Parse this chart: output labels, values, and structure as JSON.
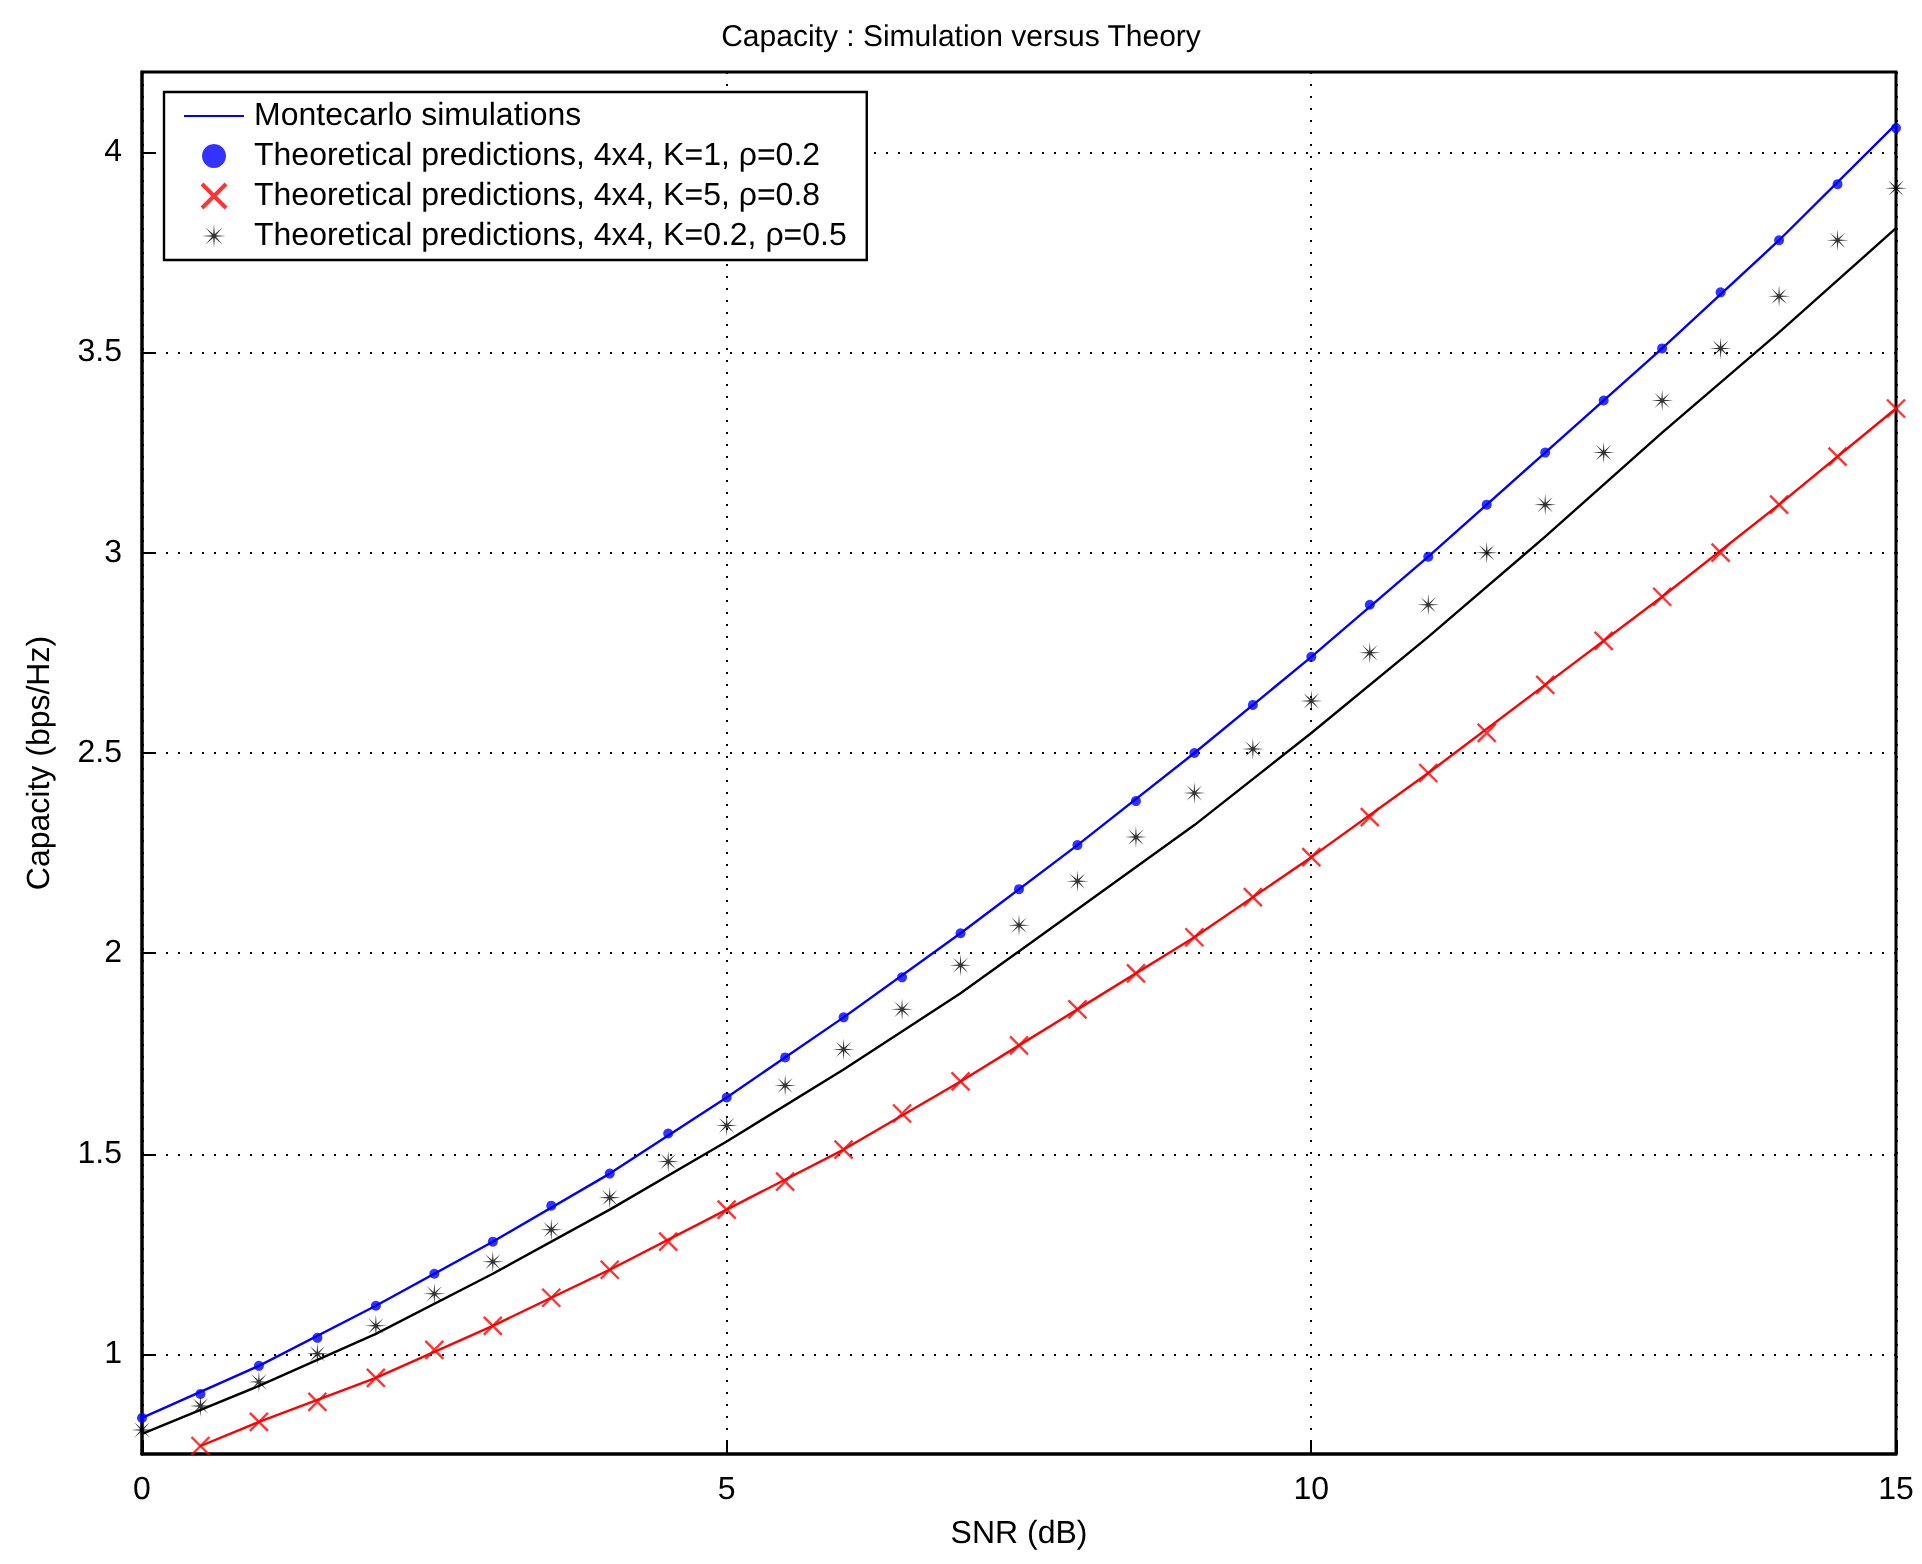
{
  "chart_data": {
    "type": "line",
    "title": "Capacity : Simulation versus Theory",
    "xlabel": "SNR (dB)",
    "ylabel": "Capacity (bps/Hz)",
    "xlim": [
      0,
      15
    ],
    "xticks": [
      0,
      5,
      10,
      15
    ],
    "ylim": [
      0.75,
      4.2
    ],
    "yticks": [
      1,
      1.5,
      2,
      2.5,
      3,
      3.5,
      4
    ],
    "grid": true,
    "legend": "top left",
    "line_style": "solid",
    "series": [
      {
        "name": "Montecarlo simulations",
        "type": "line",
        "marker": "none",
        "color": "#0000ff",
        "x": [
          0,
          1,
          2,
          3,
          4,
          5,
          6,
          7,
          8,
          9,
          10,
          11,
          12,
          13,
          14,
          15
        ],
        "values": [
          0.84,
          0.97,
          1.12,
          1.28,
          1.45,
          1.64,
          1.84,
          2.05,
          2.27,
          2.5,
          2.74,
          2.99,
          3.25,
          3.51,
          3.78,
          4.07
        ]
      },
      {
        "type": "line",
        "marker": "none",
        "color": "#ff0000",
        "x": [
          0.5,
          1,
          2,
          3,
          4,
          5,
          6,
          7,
          8,
          9,
          10,
          11,
          12,
          13,
          14,
          15
        ],
        "values": [
          0.77,
          0.83,
          0.94,
          1.07,
          1.21,
          1.36,
          1.51,
          1.68,
          1.86,
          2.04,
          2.24,
          2.45,
          2.67,
          2.89,
          3.12,
          3.36
        ]
      },
      {
        "type": "line",
        "marker": "none",
        "color": "#000000",
        "x": [
          0,
          1,
          2,
          3,
          4,
          5,
          6,
          7,
          8,
          9,
          10,
          11,
          12,
          13,
          14,
          15
        ],
        "values": [
          0.8,
          0.92,
          1.05,
          1.2,
          1.36,
          1.53,
          1.71,
          1.9,
          2.11,
          2.32,
          2.55,
          2.79,
          3.04,
          3.3,
          3.55,
          3.81
        ]
      },
      {
        "name": "Theoretical predictions, 4x4, K=1, ρ=0.2",
        "type": "scatter",
        "marker": "circle",
        "color": "#0000ff",
        "x": [
          0,
          0.5,
          1,
          1.5,
          2,
          2.5,
          3,
          3.5,
          4,
          4.5,
          5,
          5.5,
          6,
          6.5,
          7,
          7.5,
          8,
          8.5,
          9,
          9.5,
          10,
          10.5,
          11,
          11.5,
          12,
          12.5,
          13,
          13.5,
          14,
          14.5,
          15
        ],
        "values": [
          0.84,
          0.9,
          0.97,
          1.04,
          1.12,
          1.2,
          1.28,
          1.37,
          1.45,
          1.55,
          1.64,
          1.74,
          1.84,
          1.94,
          2.05,
          2.16,
          2.27,
          2.38,
          2.5,
          2.62,
          2.74,
          2.87,
          2.99,
          3.12,
          3.25,
          3.38,
          3.51,
          3.65,
          3.78,
          3.92,
          4.06
        ]
      },
      {
        "name": "Theoretical predictions, 4x4, K=5, ρ=0.8",
        "type": "scatter",
        "marker": "cross",
        "color": "#ff0000",
        "x": [
          0.5,
          1,
          1.5,
          2,
          2.5,
          3,
          3.5,
          4,
          4.5,
          5,
          5.5,
          6,
          6.5,
          7,
          7.5,
          8,
          8.5,
          9,
          9.5,
          10,
          10.5,
          11,
          11.5,
          12,
          12.5,
          13,
          13.5,
          14,
          14.5,
          15
        ],
        "values": [
          0.77,
          0.83,
          0.88,
          0.94,
          1.01,
          1.07,
          1.14,
          1.21,
          1.28,
          1.36,
          1.43,
          1.51,
          1.6,
          1.68,
          1.77,
          1.86,
          1.95,
          2.04,
          2.14,
          2.24,
          2.34,
          2.45,
          2.55,
          2.67,
          2.78,
          2.89,
          3.0,
          3.12,
          3.24,
          3.36
        ]
      },
      {
        "name": "Theoretical predictions, 4x4, K=0.2, ρ=0.5",
        "type": "scatter",
        "marker": "star",
        "color": "#000000",
        "x": [
          0,
          0.5,
          1,
          1.5,
          2,
          2.5,
          3,
          3.5,
          4,
          4.5,
          5,
          5.5,
          6,
          6.5,
          7,
          7.5,
          8,
          8.5,
          9,
          9.5,
          10,
          10.5,
          11,
          11.5,
          12,
          12.5,
          13,
          13.5,
          14,
          14.5,
          15
        ],
        "values": [
          0.81,
          0.87,
          0.93,
          1.0,
          1.07,
          1.15,
          1.23,
          1.31,
          1.39,
          1.48,
          1.57,
          1.67,
          1.76,
          1.86,
          1.97,
          2.07,
          2.18,
          2.29,
          2.4,
          2.51,
          2.63,
          2.75,
          2.87,
          3.0,
          3.12,
          3.25,
          3.38,
          3.51,
          3.64,
          3.78,
          3.91
        ]
      }
    ]
  }
}
